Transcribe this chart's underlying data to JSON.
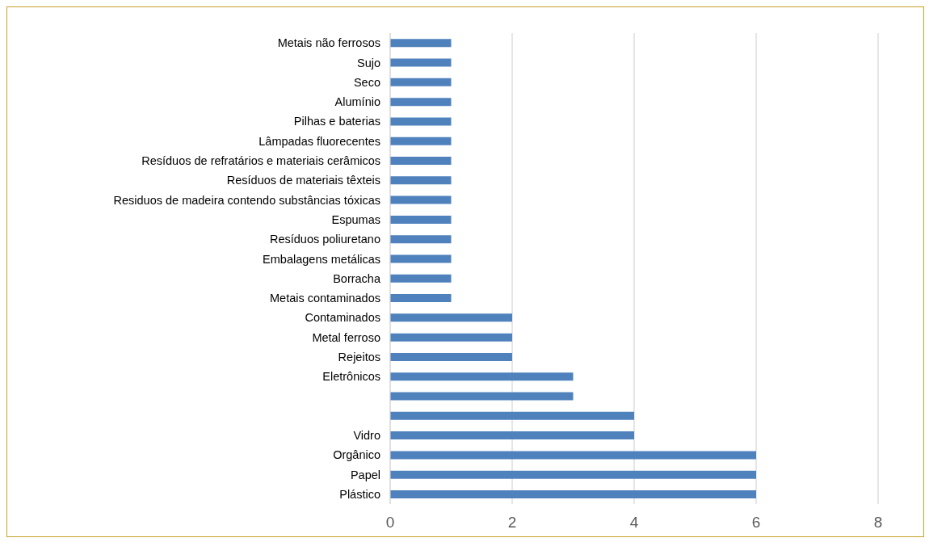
{
  "chart_data": {
    "type": "bar",
    "orientation": "horizontal",
    "categories": [
      "Metais não ferrosos",
      "Sujo",
      "Seco",
      "Alumínio",
      "Pilhas e baterias",
      "Lâmpadas fluorecentes",
      "Resíduos de refratários e materiais cerâmicos",
      "Resíduos de materiais têxteis",
      "Residuos de madeira contendo substâncias tóxicas",
      "Espumas",
      "Resíduos poliuretano",
      "Embalagens metálicas",
      "Borracha",
      "Metais contaminados",
      "Contaminados",
      "Metal ferroso",
      "Rejeitos",
      "Eletrônicos",
      null,
      null,
      "Vidro",
      "Orgânico",
      "Papel",
      "Plástico"
    ],
    "values": [
      1,
      1,
      1,
      1,
      1,
      1,
      1,
      1,
      1,
      1,
      1,
      1,
      1,
      1,
      2,
      2,
      2,
      3,
      3,
      4,
      4,
      6,
      6,
      6
    ],
    "color": "#4f81bd",
    "xlim": [
      0,
      8
    ],
    "xticks": [
      0,
      2,
      4,
      6,
      8
    ],
    "grid": "x"
  }
}
